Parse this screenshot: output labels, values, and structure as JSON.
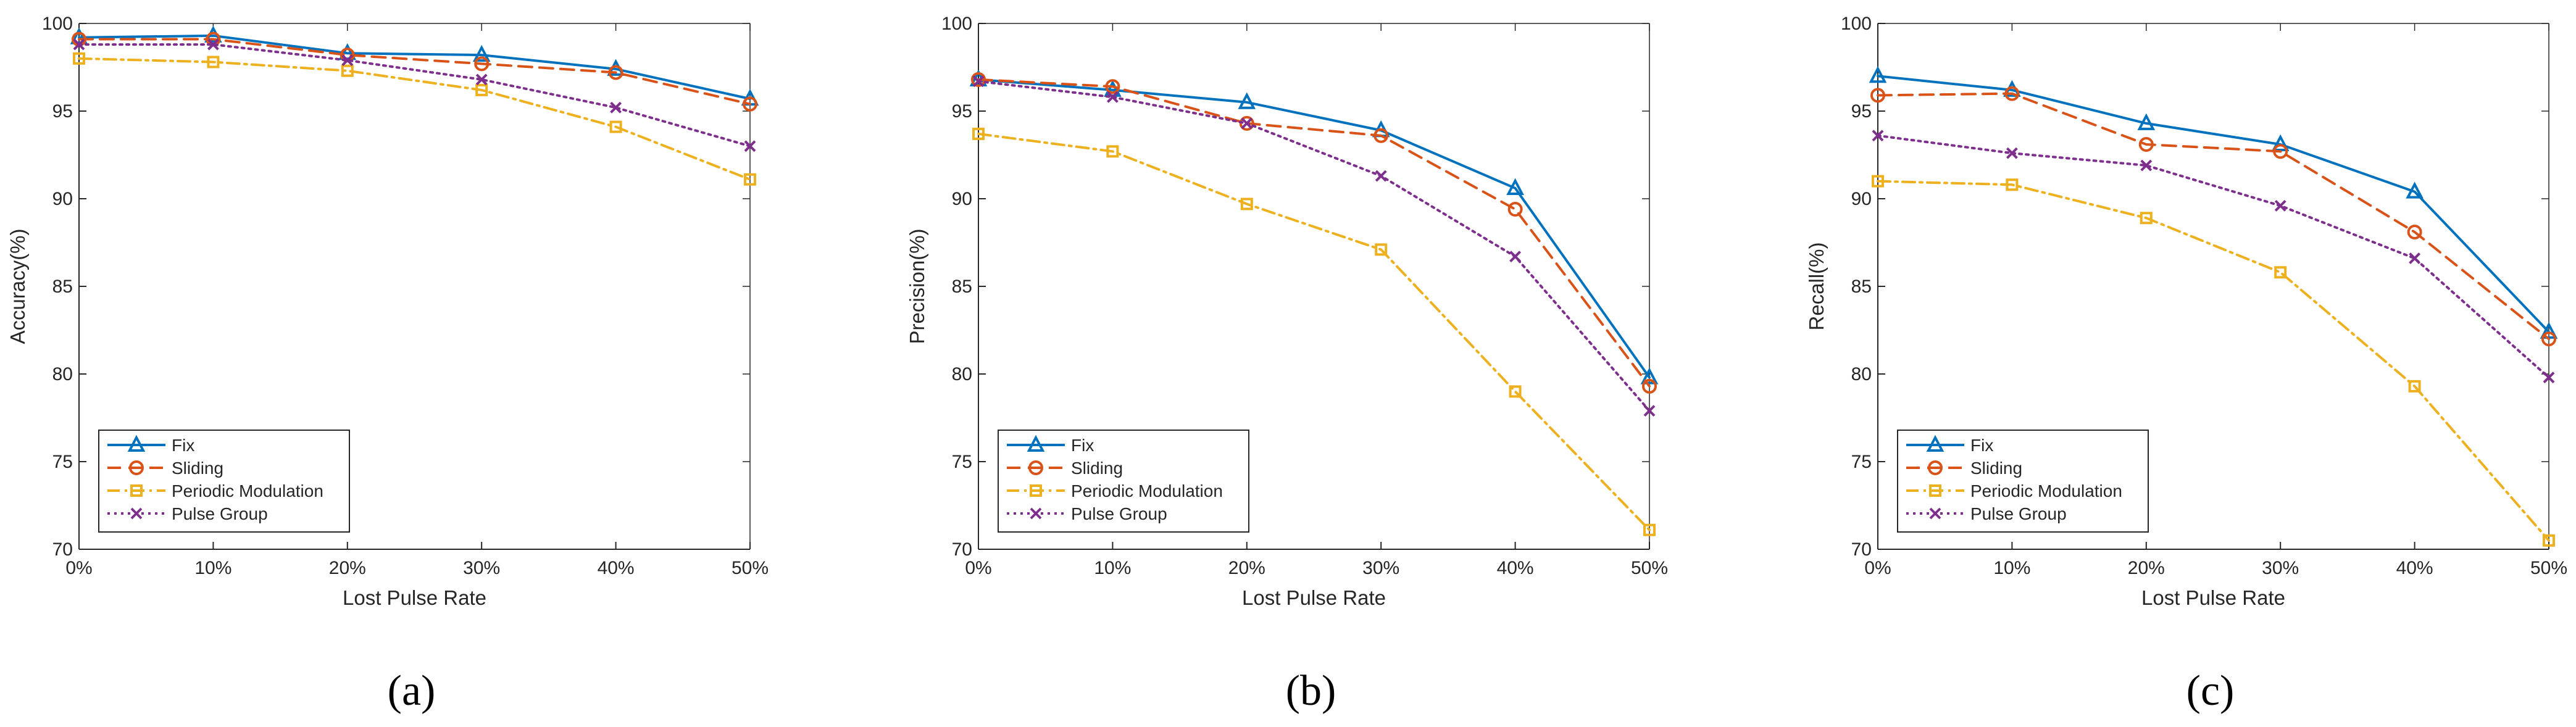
{
  "figure": {
    "panels": [
      "a",
      "b",
      "c"
    ]
  },
  "chart_data": [
    {
      "type": "line",
      "panel_label": "(a)",
      "title": "",
      "xlabel": "Lost Pulse Rate",
      "ylabel": "Accuracy(%)",
      "categories": [
        "0%",
        "10%",
        "20%",
        "30%",
        "40%",
        "50%"
      ],
      "ylim": [
        70,
        100
      ],
      "yticks": [
        "70",
        "75",
        "80",
        "85",
        "90",
        "95",
        "100"
      ],
      "legend_position": "bottom-left",
      "series": [
        {
          "name": "Fix",
          "values": [
            99.2,
            99.3,
            98.3,
            98.2,
            97.4,
            95.7
          ],
          "color": "#0072BD",
          "dash": "solid",
          "marker": "triangle"
        },
        {
          "name": "Sliding",
          "values": [
            99.1,
            99.1,
            98.2,
            97.7,
            97.2,
            95.4
          ],
          "color": "#D95319",
          "dash": "dashed",
          "marker": "circle"
        },
        {
          "name": "Periodic Modulation",
          "values": [
            98.0,
            97.8,
            97.3,
            96.2,
            94.1,
            91.1
          ],
          "color": "#EDB120",
          "dash": "dashdot",
          "marker": "square"
        },
        {
          "name": "Pulse Group",
          "values": [
            98.8,
            98.8,
            97.9,
            96.8,
            95.2,
            93.0
          ],
          "color": "#7E2F8E",
          "dash": "dotted",
          "marker": "x"
        }
      ]
    },
    {
      "type": "line",
      "panel_label": "(b)",
      "title": "",
      "xlabel": "Lost Pulse Rate",
      "ylabel": "Precision(%)",
      "categories": [
        "0%",
        "10%",
        "20%",
        "30%",
        "40%",
        "50%"
      ],
      "ylim": [
        70,
        100
      ],
      "yticks": [
        "70",
        "75",
        "80",
        "85",
        "90",
        "95",
        "100"
      ],
      "legend_position": "bottom-left",
      "series": [
        {
          "name": "Fix",
          "values": [
            96.8,
            96.2,
            95.5,
            93.9,
            90.6,
            79.8
          ],
          "color": "#0072BD",
          "dash": "solid",
          "marker": "triangle"
        },
        {
          "name": "Sliding",
          "values": [
            96.8,
            96.4,
            94.3,
            93.6,
            89.4,
            79.3
          ],
          "color": "#D95319",
          "dash": "dashed",
          "marker": "circle"
        },
        {
          "name": "Periodic Modulation",
          "values": [
            93.7,
            92.7,
            89.7,
            87.1,
            79.0,
            71.1
          ],
          "color": "#EDB120",
          "dash": "dashdot",
          "marker": "square"
        },
        {
          "name": "Pulse Group",
          "values": [
            96.7,
            95.8,
            94.3,
            91.3,
            86.7,
            77.9
          ],
          "color": "#7E2F8E",
          "dash": "dotted",
          "marker": "x"
        }
      ]
    },
    {
      "type": "line",
      "panel_label": "(c)",
      "title": "",
      "xlabel": "Lost Pulse Rate",
      "ylabel": "Recall(%)",
      "categories": [
        "0%",
        "10%",
        "20%",
        "30%",
        "40%",
        "50%"
      ],
      "ylim": [
        70,
        100
      ],
      "yticks": [
        "70",
        "75",
        "80",
        "85",
        "90",
        "95",
        "100"
      ],
      "legend_position": "bottom-left",
      "series": [
        {
          "name": "Fix",
          "values": [
            97.0,
            96.2,
            94.3,
            93.1,
            90.4,
            82.4
          ],
          "color": "#0072BD",
          "dash": "solid",
          "marker": "triangle"
        },
        {
          "name": "Sliding",
          "values": [
            95.9,
            96.0,
            93.1,
            92.7,
            88.1,
            82.0
          ],
          "color": "#D95319",
          "dash": "dashed",
          "marker": "circle"
        },
        {
          "name": "Periodic Modulation",
          "values": [
            91.0,
            90.8,
            88.9,
            85.8,
            79.3,
            70.5
          ],
          "color": "#EDB120",
          "dash": "dashdot",
          "marker": "square"
        },
        {
          "name": "Pulse Group",
          "values": [
            93.6,
            92.6,
            91.9,
            89.6,
            86.6,
            79.8
          ],
          "color": "#7E2F8E",
          "dash": "dotted",
          "marker": "x"
        }
      ]
    }
  ]
}
